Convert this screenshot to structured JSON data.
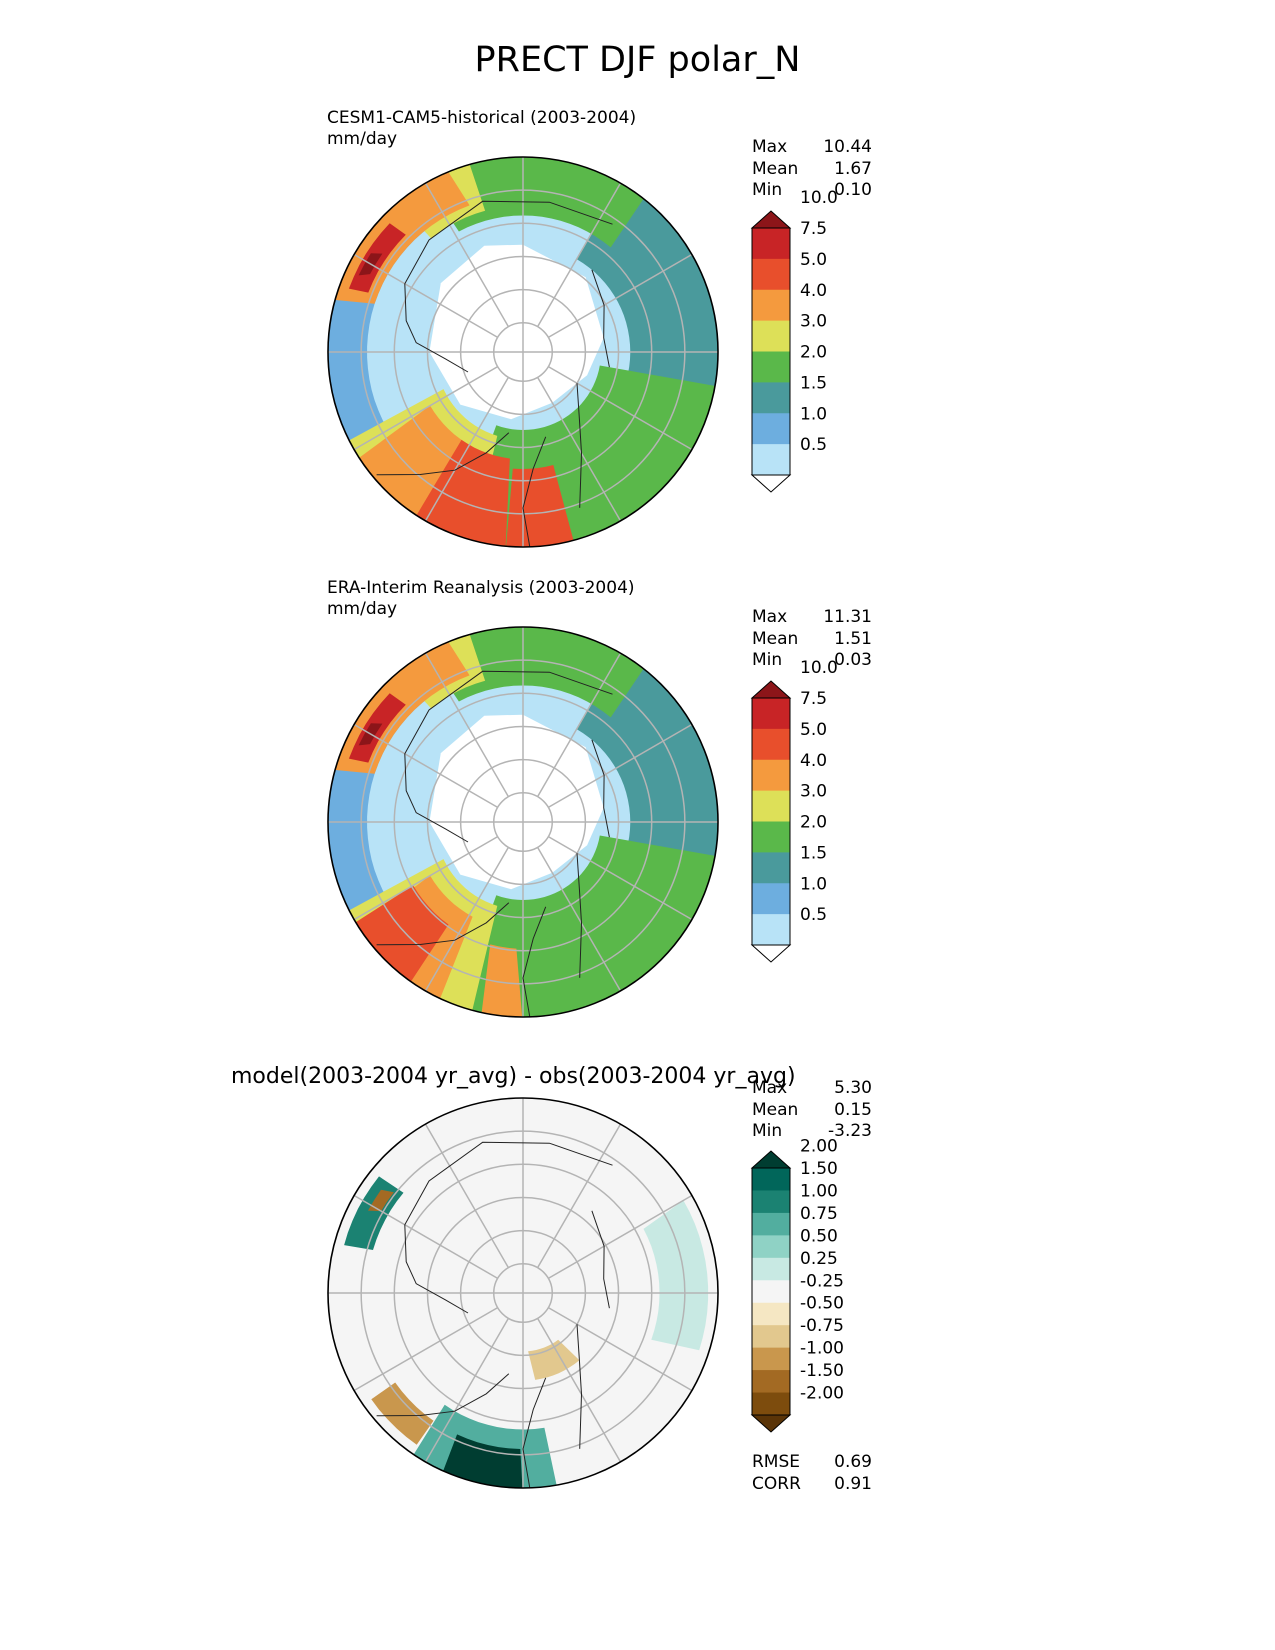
{
  "figure": {
    "title": "PRECT DJF polar_N"
  },
  "panels": [
    {
      "id": "model",
      "title": "CESM1-CAM5-historical (2003-2004)",
      "units": "mm/day",
      "stats": [
        {
          "label": "Max",
          "value": "10.44"
        },
        {
          "label": "Mean",
          "value": "1.67"
        },
        {
          "label": "Min",
          "value": "0.10"
        }
      ]
    },
    {
      "id": "obs",
      "title": "ERA-Interim Reanalysis (2003-2004)",
      "units": "mm/day",
      "stats": [
        {
          "label": "Max",
          "value": "11.31"
        },
        {
          "label": "Mean",
          "value": "1.51"
        },
        {
          "label": "Min",
          "value": "0.03"
        }
      ]
    },
    {
      "id": "diff",
      "title": "model(2003-2004 yr_avg) - obs(2003-2004 yr_avg)",
      "stats": [
        {
          "label": "Max",
          "value": "5.30"
        },
        {
          "label": "Mean",
          "value": "0.15"
        },
        {
          "label": "Min",
          "value": "-3.23"
        }
      ],
      "metrics": [
        {
          "label": "RMSE",
          "value": "0.69"
        },
        {
          "label": "CORR",
          "value": "0.91"
        }
      ]
    }
  ],
  "colorbars": {
    "precip": {
      "ticks": [
        "0.5",
        "1.0",
        "1.5",
        "2.0",
        "3.0",
        "4.0",
        "5.0",
        "7.5",
        "10.0"
      ],
      "colors": [
        "#ffffff",
        "#b8e3f7",
        "#6daedf",
        "#4a9a9c",
        "#5ab84a",
        "#dde058",
        "#f49a3e",
        "#e84f2c",
        "#c82426",
        "#8c1519"
      ]
    },
    "diff": {
      "ticks": [
        "-2.00",
        "-1.50",
        "-1.00",
        "-0.75",
        "-0.50",
        "-0.25",
        "0.25",
        "0.50",
        "0.75",
        "1.00",
        "1.50",
        "2.00"
      ],
      "colors": [
        "#5a3407",
        "#7d4c0d",
        "#a36a23",
        "#c9974d",
        "#e2c88e",
        "#f5e7c3",
        "#f5f5f5",
        "#c8e9e3",
        "#8fd2c5",
        "#52ae9f",
        "#1b8272",
        "#01665a",
        "#003d31"
      ]
    }
  },
  "colors": {
    "coastline": "#222222",
    "grid": "#b4b4b4",
    "frame": "#000000"
  }
}
